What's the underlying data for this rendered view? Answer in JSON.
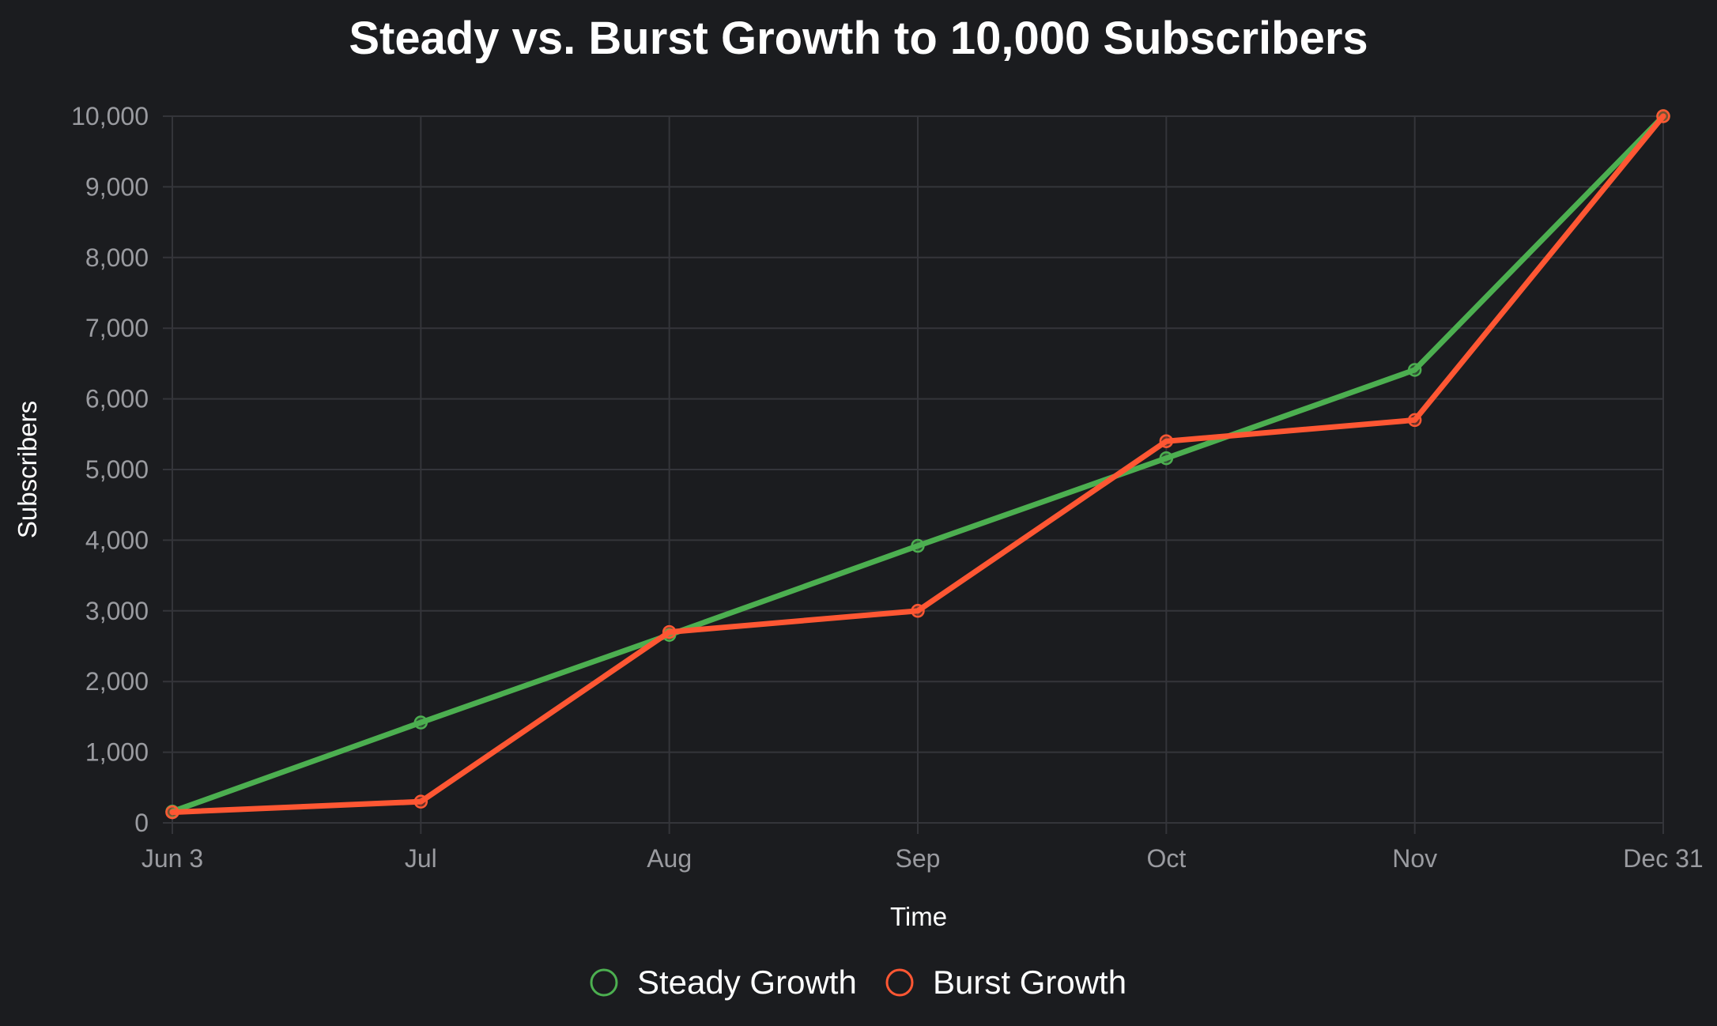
{
  "chart_data": {
    "type": "line",
    "title": "Steady vs. Burst Growth to 10,000 Subscribers",
    "xlabel": "Time",
    "ylabel": "Subscribers",
    "categories": [
      "Jun 3",
      "Jul",
      "Aug",
      "Sep",
      "Oct",
      "Nov",
      "Dec 31"
    ],
    "ylim": [
      0,
      10000
    ],
    "yticks": [
      0,
      1000,
      2000,
      3000,
      4000,
      5000,
      6000,
      7000,
      8000,
      9000,
      10000
    ],
    "ytick_labels": [
      "0",
      "1,000",
      "2,000",
      "3,000",
      "4,000",
      "5,000",
      "6,000",
      "7,000",
      "8,000",
      "9,000",
      "10,000"
    ],
    "grid": true,
    "legend_position": "bottom-center",
    "series": [
      {
        "name": "Steady Growth",
        "color": "#4caf50",
        "values": [
          160,
          1420,
          2660,
          3920,
          5160,
          6410,
          10000
        ]
      },
      {
        "name": "Burst Growth",
        "color": "#ff5733",
        "values": [
          150,
          300,
          2700,
          3000,
          5400,
          5700,
          10000
        ]
      }
    ]
  }
}
